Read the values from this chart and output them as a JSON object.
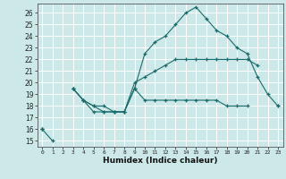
{
  "title": "",
  "xlabel": "Humidex (Indice chaleur)",
  "ylabel": "",
  "bg_color": "#cce8e8",
  "grid_color": "#ffffff",
  "line_color": "#1a6b6b",
  "xlim": [
    -0.5,
    23.5
  ],
  "ylim": [
    14.5,
    26.8
  ],
  "yticks": [
    15,
    16,
    17,
    18,
    19,
    20,
    21,
    22,
    23,
    24,
    25,
    26
  ],
  "xticks": [
    0,
    1,
    2,
    3,
    4,
    5,
    6,
    7,
    8,
    9,
    10,
    11,
    12,
    13,
    14,
    15,
    16,
    17,
    18,
    19,
    20,
    21,
    22,
    23
  ],
  "series1": [
    16.0,
    15.0,
    null,
    19.5,
    18.5,
    17.5,
    17.5,
    17.5,
    17.5,
    19.5,
    18.5,
    18.5,
    18.5,
    18.5,
    18.5,
    18.5,
    18.5,
    18.5,
    18.0,
    18.0,
    18.0,
    null,
    null,
    18.0
  ],
  "series2": [
    16.0,
    null,
    null,
    19.5,
    18.5,
    18.0,
    17.5,
    17.5,
    17.5,
    19.5,
    22.5,
    23.5,
    24.0,
    25.0,
    26.0,
    26.5,
    25.5,
    24.5,
    24.0,
    23.0,
    22.5,
    20.5,
    19.0,
    18.0
  ],
  "series3": [
    16.0,
    null,
    null,
    19.5,
    18.5,
    18.0,
    18.0,
    17.5,
    17.5,
    20.0,
    20.5,
    21.0,
    21.5,
    22.0,
    22.0,
    22.0,
    22.0,
    22.0,
    22.0,
    22.0,
    22.0,
    21.5,
    null,
    null
  ]
}
